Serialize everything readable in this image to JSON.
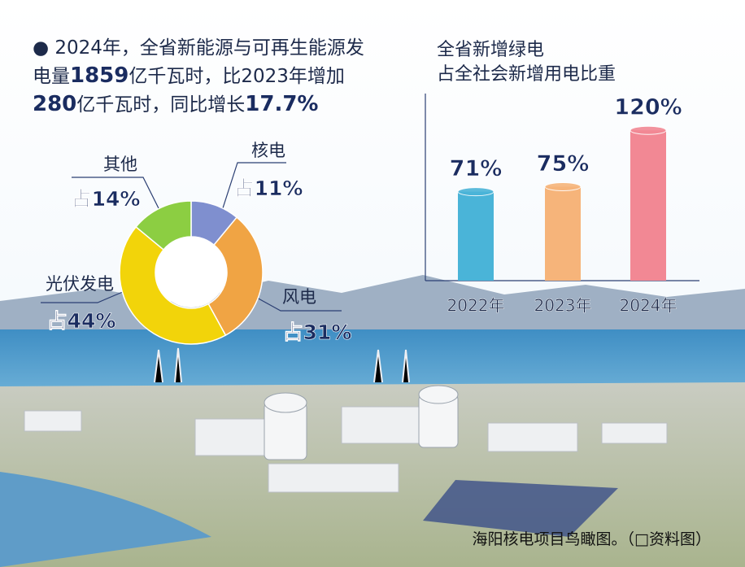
{
  "intro": [
    "● 2024年，全省新能源与可再生能源发电量",
    "1859",
    "亿千瓦时，比2023年增加",
    "280",
    "亿千瓦时，同比增长",
    "17.7%"
  ],
  "chart_data": [
    {
      "type": "pie",
      "categories": [
        "核电",
        "风电",
        "光伏发电",
        "其他"
      ],
      "values": [
        11,
        31,
        44,
        14
      ],
      "value_labels": [
        "占11%",
        "占31%",
        "占44%",
        "占14%"
      ],
      "colors": [
        "#7f8fcf",
        "#f0a444",
        "#f2d40a",
        "#8cce42"
      ]
    },
    {
      "type": "bar",
      "title": [
        "全省新增绿电",
        "占全社会新增用电比重"
      ],
      "categories": [
        "2022年",
        "2023年",
        "2024年"
      ],
      "values": [
        71,
        75,
        120
      ],
      "value_labels": [
        "71%",
        "75%",
        "120%"
      ],
      "colors": [
        "#4ab4d8",
        "#f6b47a",
        "#f28894"
      ]
    }
  ],
  "caption": "海阳核电项目鸟瞰图。（□资料图）"
}
